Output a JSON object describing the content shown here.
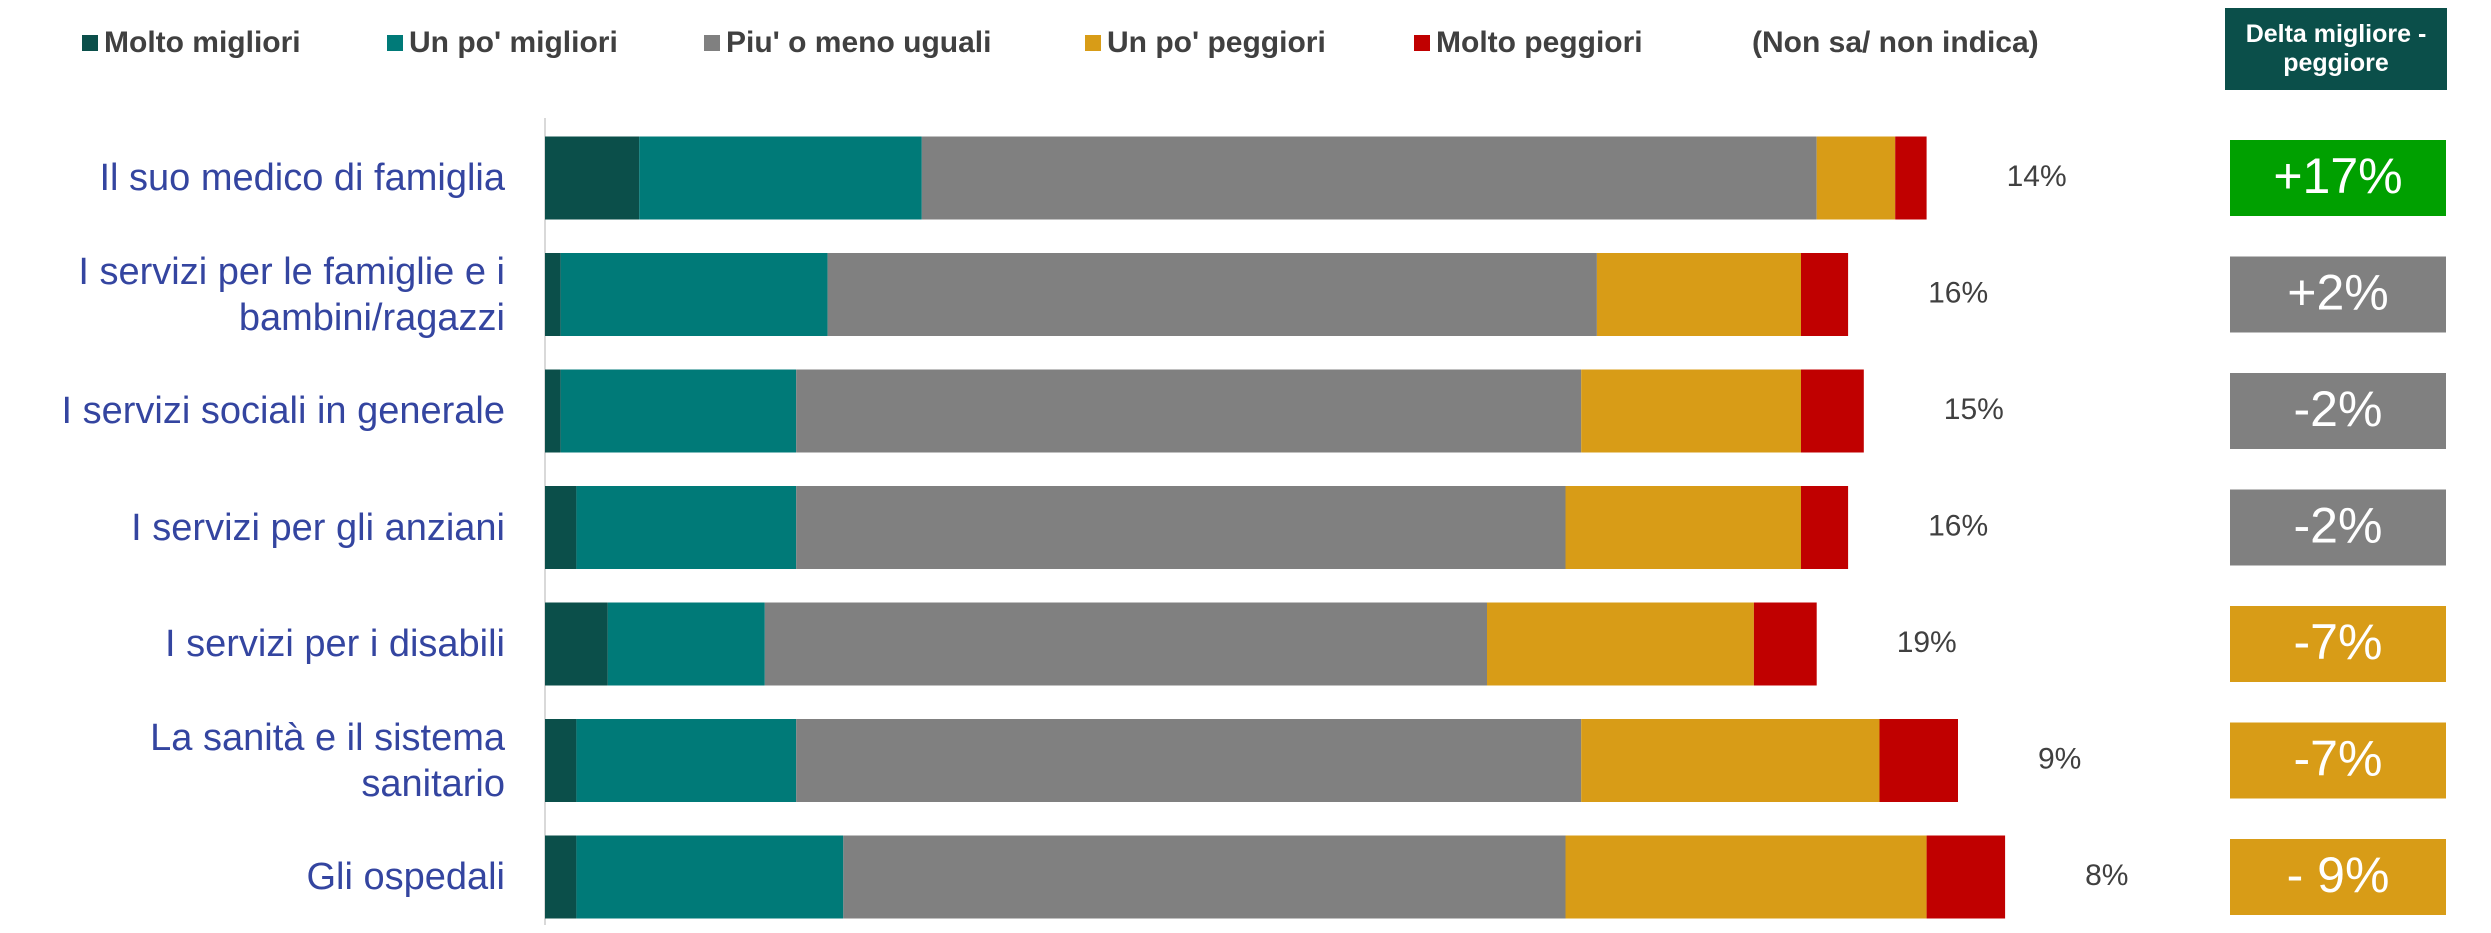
{
  "chart_data": {
    "type": "stacked-barh",
    "categories": [
      "Il suo medico di famiglia",
      "I servizi per le famiglie e i\nbambini/ragazzi",
      "I servizi sociali in generale",
      "I servizi per gli anziani",
      "I servizi per i disabili",
      "La sanità e il sistema\nsanitario",
      "Gli ospedali"
    ],
    "series": [
      {
        "name": "Molto migliori",
        "color": "#0b4f4a",
        "values": [
          6,
          1,
          1,
          2,
          4,
          2,
          2
        ],
        "value_labels": [
          "6%",
          "1%",
          "1%",
          "2%",
          "4%",
          "2%",
          "2%"
        ]
      },
      {
        "name": "Un po' migliori",
        "color": "#007a78",
        "values": [
          18,
          17,
          15,
          14,
          10,
          14,
          17
        ],
        "value_labels": [
          "18%",
          "17%",
          "15%",
          "14%",
          "10%",
          "14%",
          "17%"
        ]
      },
      {
        "name": "Piu' o meno uguali",
        "color": "#808080",
        "values": [
          57,
          49,
          50,
          49,
          46,
          50,
          46
        ],
        "value_labels": [
          "57%",
          "49%",
          "50%",
          "49%",
          "46%",
          "50%",
          "46%"
        ]
      },
      {
        "name": "Un po' peggiori",
        "color": "#d89c17",
        "values": [
          5,
          13,
          14,
          15,
          17,
          19,
          23
        ],
        "value_labels": [
          "5%",
          "13%",
          "14%",
          "15%",
          "17%",
          "19%",
          "23%"
        ]
      },
      {
        "name": "Molto peggiori",
        "color": "#c00000",
        "values": [
          2,
          3,
          4,
          3,
          4,
          5,
          5
        ],
        "value_labels": [
          "2%",
          "3%",
          "4%",
          "3%",
          "4%",
          "5%",
          "5%"
        ]
      }
    ],
    "non_sa": {
      "name": "(Non sa/ non indica)",
      "values": [
        14,
        16,
        15,
        16,
        19,
        9,
        8
      ],
      "value_labels": [
        "14%",
        "16%",
        "15%",
        "16%",
        "19%",
        "9%",
        "8%"
      ]
    },
    "delta": {
      "title": "Delta migliore -\npeggiore",
      "values": [
        17,
        2,
        -2,
        -2,
        -7,
        -7,
        -9
      ],
      "value_labels": [
        "+17%",
        "+2%",
        "-2%",
        "-2%",
        "-7%",
        "-7%",
        "- 9%"
      ],
      "colors": [
        "#00a000",
        "#808080",
        "#808080",
        "#808080",
        "#d89c17",
        "#d89c17",
        "#d89c17"
      ]
    }
  }
}
